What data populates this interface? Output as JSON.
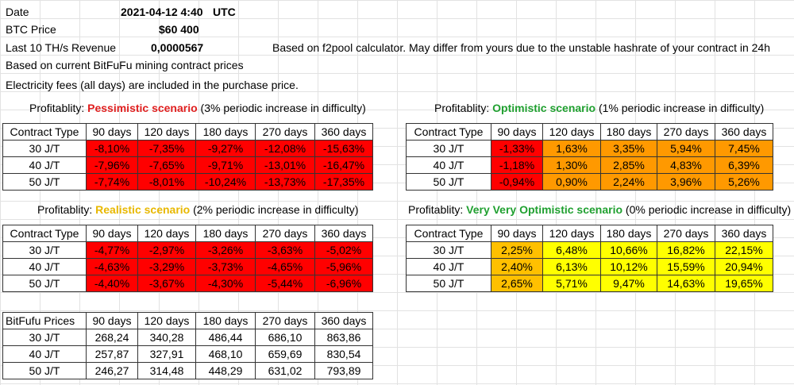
{
  "info": {
    "date_label": "Date",
    "date_value": "2021-04-12 4:40",
    "date_tz": "UTC",
    "btc_label": "BTC Price",
    "btc_value": "$60 400",
    "rev_label": "Last 10 TH/s Revenue",
    "rev_value": "0,0000567",
    "rev_note": "Based on f2pool calculator. May differ from yours due to the unstable hashrate of your contract in 24h",
    "note1": "Based on current BitFuFu mining contract prices",
    "note2": "Electricity fees (all days) are included in the purchase price."
  },
  "periods": [
    "90 days",
    "120 days",
    "180 days",
    "270 days",
    "360 days"
  ],
  "contracts": [
    "30 J/T",
    "40 J/T",
    "50 J/T"
  ],
  "colors": {
    "red": "#ff0000",
    "orange": "#ff9900",
    "amber": "#ffc000",
    "yellow": "#ffff00"
  },
  "pessimistic": {
    "title_pre": "Profitablity: ",
    "title_name": "Pessimistic scenario",
    "title_post": " (3% periodic increase in difficulty)",
    "header": "Contract Type",
    "rows": [
      [
        "-8,10%",
        "-7,35%",
        "-9,27%",
        "-12,08%",
        "-15,63%"
      ],
      [
        "-7,96%",
        "-7,65%",
        "-9,71%",
        "-13,01%",
        "-16,47%"
      ],
      [
        "-7,74%",
        "-8,01%",
        "-10,24%",
        "-13,73%",
        "-17,35%"
      ]
    ]
  },
  "optimistic": {
    "title_pre": "Profitablity: ",
    "title_name": "Optimistic scenario",
    "title_post": " (1% periodic increase in difficulty)",
    "header": "Contract Type",
    "rows": [
      [
        "-1,33%",
        "1,63%",
        "3,35%",
        "5,94%",
        "7,45%"
      ],
      [
        "-1,18%",
        "1,30%",
        "2,85%",
        "4,83%",
        "6,39%"
      ],
      [
        "-0,94%",
        "0,90%",
        "2,24%",
        "3,96%",
        "5,26%"
      ]
    ]
  },
  "realistic": {
    "title_pre": "Profitablity: ",
    "title_name": "Realistic scenario",
    "title_post": " (2% periodic increase in difficulty)",
    "header": "Contract Type",
    "rows": [
      [
        "-4,77%",
        "-2,97%",
        "-3,26%",
        "-3,63%",
        "-5,02%"
      ],
      [
        "-4,63%",
        "-3,29%",
        "-3,73%",
        "-4,65%",
        "-5,96%"
      ],
      [
        "-4,40%",
        "-3,67%",
        "-4,30%",
        "-5,44%",
        "-6,96%"
      ]
    ]
  },
  "very_optimistic": {
    "title_pre": "Profitablity: ",
    "title_name": "Very Very Optimistic scenario",
    "title_post": " (0% periodic increase in difficulty)",
    "header": "Contract Type",
    "rows": [
      [
        "2,25%",
        "6,48%",
        "10,66%",
        "16,82%",
        "22,15%"
      ],
      [
        "2,40%",
        "6,13%",
        "10,12%",
        "15,59%",
        "20,94%"
      ],
      [
        "2,65%",
        "5,71%",
        "9,47%",
        "14,63%",
        "19,65%"
      ]
    ]
  },
  "prices": {
    "header": "BitFufu Prices",
    "rows": [
      [
        "268,24",
        "340,28",
        "486,44",
        "686,10",
        "863,86"
      ],
      [
        "257,87",
        "327,91",
        "468,10",
        "659,69",
        "830,54"
      ],
      [
        "246,27",
        "314,48",
        "448,29",
        "631,02",
        "793,89"
      ]
    ]
  }
}
